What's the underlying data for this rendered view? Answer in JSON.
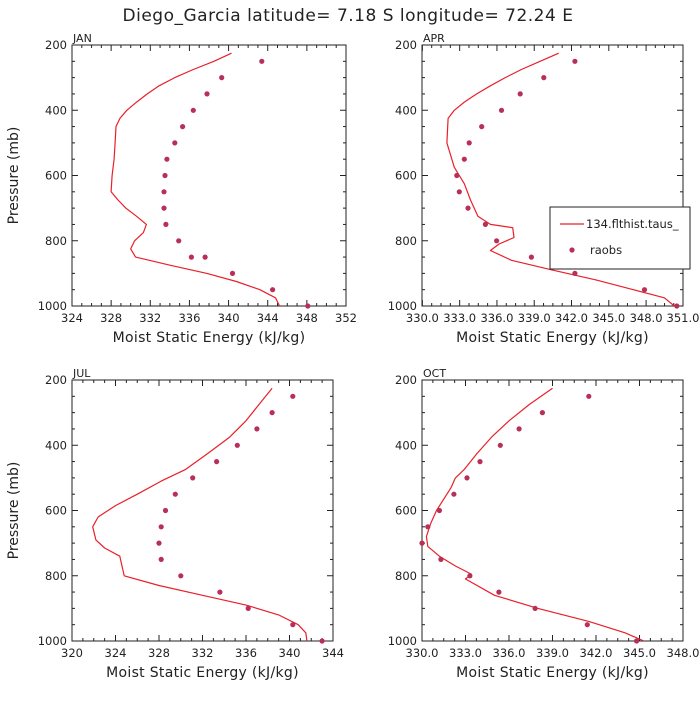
{
  "title": "Diego_Garcia   latitude= 7.18 S longitude= 72.24 E",
  "colors": {
    "model": "#e8202a",
    "obs": "#b8305a",
    "axis": "#222222"
  },
  "chart_data": [
    {
      "type": "line",
      "panel_label": "JAN",
      "xlabel": "Moist Static Energy (kJ/kg)",
      "ylabel": "Pressure (mb)",
      "xlim": [
        324,
        352
      ],
      "ylim": [
        1000,
        200
      ],
      "x_ticks": [
        324,
        328,
        332,
        336,
        340,
        344,
        348,
        352
      ],
      "x_tick_labels": [
        "324",
        "328",
        "332",
        "336",
        "340",
        "344",
        "348",
        "352"
      ],
      "y_ticks": [
        200,
        400,
        600,
        800,
        1000
      ],
      "y_tick_labels": [
        "200",
        "400",
        "600",
        "800",
        "1000"
      ],
      "show_legend": false,
      "series": [
        {
          "name": "134.flthist.taus_",
          "kind": "line",
          "x": [
            340.3,
            338.5,
            336.4,
            334.5,
            332.9,
            331.7,
            330.6,
            329.6,
            328.9,
            328.5,
            328.4,
            328.3,
            328.1,
            328.0,
            328.7,
            329.5,
            330.6,
            331.6,
            331.3,
            330.4,
            330.0,
            330.5,
            334.0,
            337.8,
            340.8,
            343.2,
            344.8,
            345.2
          ],
          "y": [
            225,
            250,
            275,
            300,
            325,
            350,
            375,
            400,
            425,
            450,
            500,
            550,
            600,
            650,
            675,
            700,
            725,
            750,
            775,
            800,
            825,
            850,
            875,
            900,
            925,
            950,
            975,
            1000
          ]
        },
        {
          "name": "raobs",
          "kind": "scatter",
          "x": [
            343.4,
            339.3,
            337.8,
            336.4,
            335.3,
            334.5,
            333.7,
            333.5,
            333.4,
            333.4,
            333.6,
            334.9,
            336.2,
            337.6,
            340.4,
            344.5,
            348.1
          ],
          "y": [
            250,
            300,
            350,
            400,
            450,
            500,
            550,
            600,
            650,
            700,
            750,
            800,
            850,
            850,
            900,
            950,
            1000
          ]
        }
      ]
    },
    {
      "type": "line",
      "panel_label": "APR",
      "xlabel": "Moist Static Energy (kJ/kg)",
      "ylabel": "",
      "xlim": [
        330.0,
        351.0
      ],
      "ylim": [
        1000,
        200
      ],
      "x_ticks": [
        330.03,
        333.03,
        336.03,
        339.03,
        342.03,
        345.03,
        348.03,
        351.0
      ],
      "x_tick_labels": [
        "330.0",
        "333.0",
        "336.0",
        "339.0",
        "342.0",
        "345.0",
        "348.0",
        "351.0"
      ],
      "y_ticks": [
        200,
        400,
        600,
        800,
        1000
      ],
      "y_tick_labels": [
        "200",
        "400",
        "600",
        "800",
        "1000"
      ],
      "show_legend": true,
      "legend": [
        "134.flthist.taus_",
        "raobs"
      ],
      "legend_position": "right",
      "series": [
        {
          "name": "134.flthist.taus_",
          "kind": "line",
          "x": [
            341.0,
            339.5,
            338.0,
            336.7,
            335.5,
            334.4,
            333.4,
            332.6,
            332.1,
            332.0,
            332.6,
            333.4,
            333.9,
            334.2,
            334.5,
            335.5,
            337.3,
            337.4,
            336.2,
            335.5,
            337.2,
            340.5,
            344.0,
            347.0,
            349.5,
            350.3
          ],
          "y": [
            225,
            250,
            275,
            300,
            325,
            350,
            375,
            400,
            425,
            500,
            575,
            625,
            675,
            700,
            725,
            750,
            760,
            790,
            810,
            830,
            860,
            890,
            920,
            950,
            975,
            1000
          ]
        },
        {
          "name": "raobs",
          "kind": "scatter",
          "x": [
            342.3,
            339.8,
            337.9,
            336.4,
            334.8,
            333.8,
            333.4,
            332.8,
            333.0,
            333.7,
            335.1,
            336.0,
            338.8,
            342.3,
            347.9,
            350.5
          ],
          "y": [
            250,
            300,
            350,
            400,
            450,
            500,
            550,
            600,
            650,
            700,
            750,
            800,
            850,
            900,
            950,
            1000
          ]
        }
      ]
    },
    {
      "type": "line",
      "panel_label": "JUL",
      "xlabel": "Moist Static Energy (kJ/kg)",
      "ylabel": "Pressure (mb)",
      "xlim": [
        320,
        344
      ],
      "ylim": [
        1000,
        200
      ],
      "x_ticks": [
        320,
        324,
        328,
        332,
        336,
        340,
        344
      ],
      "x_tick_labels": [
        "320",
        "324",
        "328",
        "332",
        "336",
        "340",
        "344"
      ],
      "y_ticks": [
        200,
        400,
        600,
        800,
        1000
      ],
      "y_tick_labels": [
        "200",
        "400",
        "600",
        "800",
        "1000"
      ],
      "show_legend": false,
      "series": [
        {
          "name": "134.flthist.taus_",
          "kind": "line",
          "x": [
            338.4,
            337.2,
            336.0,
            334.5,
            332.5,
            330.4,
            328.2,
            326.0,
            324.0,
            322.4,
            321.9,
            322.2,
            323.0,
            324.4,
            324.6,
            324.8,
            328.0,
            332.0,
            336.0,
            339.0,
            340.8,
            341.5,
            341.6
          ],
          "y": [
            225,
            275,
            325,
            375,
            425,
            475,
            510,
            550,
            585,
            620,
            650,
            690,
            715,
            740,
            770,
            800,
            830,
            860,
            890,
            920,
            950,
            975,
            1000
          ]
        },
        {
          "name": "raobs",
          "kind": "scatter",
          "x": [
            340.3,
            338.4,
            337.0,
            335.2,
            333.3,
            331.1,
            329.5,
            328.6,
            328.2,
            328.0,
            328.2,
            330.0,
            333.6,
            336.2,
            340.3,
            343.0
          ],
          "y": [
            250,
            300,
            350,
            400,
            450,
            500,
            550,
            600,
            650,
            700,
            750,
            800,
            850,
            900,
            950,
            1000
          ]
        }
      ]
    },
    {
      "type": "line",
      "panel_label": "OCT",
      "xlabel": "Moist Static Energy (kJ/kg)",
      "ylabel": "",
      "xlim": [
        330.0,
        348.0
      ],
      "ylim": [
        1000,
        200
      ],
      "x_ticks": [
        330.0,
        333.0,
        336.0,
        339.0,
        342.0,
        345.0,
        348.0
      ],
      "x_tick_labels": [
        "330.0",
        "333.0",
        "336.0",
        "339.0",
        "342.0",
        "345.0",
        "348.0"
      ],
      "y_ticks": [
        200,
        400,
        600,
        800,
        1000
      ],
      "y_tick_labels": [
        "200",
        "400",
        "600",
        "800",
        "1000"
      ],
      "show_legend": false,
      "series": [
        {
          "name": "134.flthist.taus_",
          "kind": "line",
          "x": [
            339.0,
            337.4,
            336.0,
            334.8,
            333.8,
            332.9,
            332.3,
            332.0,
            331.5,
            331.0,
            330.6,
            330.3,
            330.4,
            331.2,
            332.3,
            333.4,
            333.0,
            335.0,
            338.0,
            341.5,
            344.0,
            345.3
          ],
          "y": [
            225,
            275,
            325,
            375,
            425,
            475,
            500,
            530,
            565,
            600,
            640,
            680,
            710,
            740,
            770,
            795,
            810,
            860,
            900,
            940,
            975,
            1000
          ]
        },
        {
          "name": "raobs",
          "kind": "scatter",
          "x": [
            341.5,
            338.3,
            336.7,
            335.4,
            334.0,
            333.1,
            332.2,
            331.2,
            330.4,
            330.0,
            331.3,
            333.3,
            335.3,
            337.8,
            341.4,
            344.8
          ],
          "y": [
            250,
            300,
            350,
            400,
            450,
            500,
            550,
            600,
            650,
            700,
            750,
            800,
            850,
            900,
            950,
            1000
          ]
        }
      ]
    }
  ]
}
